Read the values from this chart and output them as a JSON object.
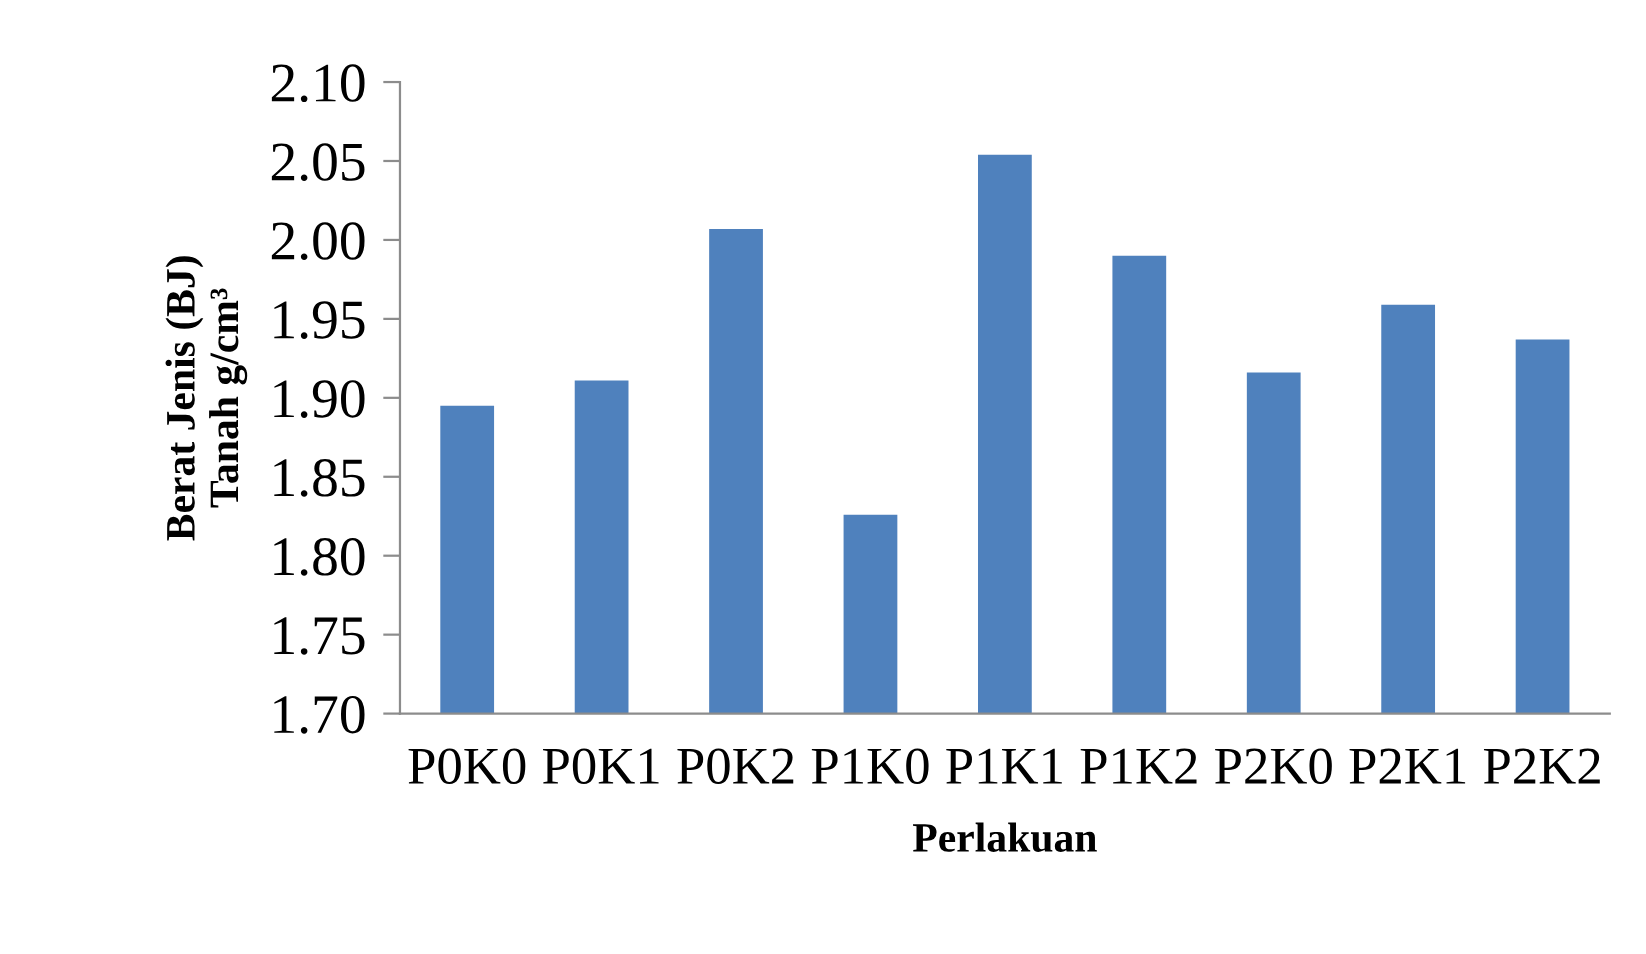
{
  "chart_data": {
    "type": "bar",
    "xlabel": "Perlakuan",
    "ylabel": "Berat Jenis (BJ)\nTanah g/cm³",
    "categories": [
      "P0K0",
      "P0K1",
      "P0K2",
      "P1K0",
      "P1K1",
      "P1K2",
      "P2K0",
      "P2K1",
      "P2K2"
    ],
    "values": [
      1.895,
      1.911,
      2.007,
      1.826,
      2.054,
      1.99,
      1.916,
      1.959,
      1.937
    ],
    "color": "#4f81bd",
    "ylim": [
      1.7,
      2.1
    ],
    "yticks": [
      {
        "value": 1.7,
        "label": "1.70"
      },
      {
        "value": 1.75,
        "label": "1.75"
      },
      {
        "value": 1.8,
        "label": "1.80"
      },
      {
        "value": 1.85,
        "label": "1.85"
      },
      {
        "value": 1.9,
        "label": "1.90"
      },
      {
        "value": 1.95,
        "label": "1.95"
      },
      {
        "value": 2.0,
        "label": "2.00"
      },
      {
        "value": 2.05,
        "label": "2.05"
      },
      {
        "value": 2.1,
        "label": "2.10"
      }
    ],
    "grid": false,
    "legend": false
  }
}
